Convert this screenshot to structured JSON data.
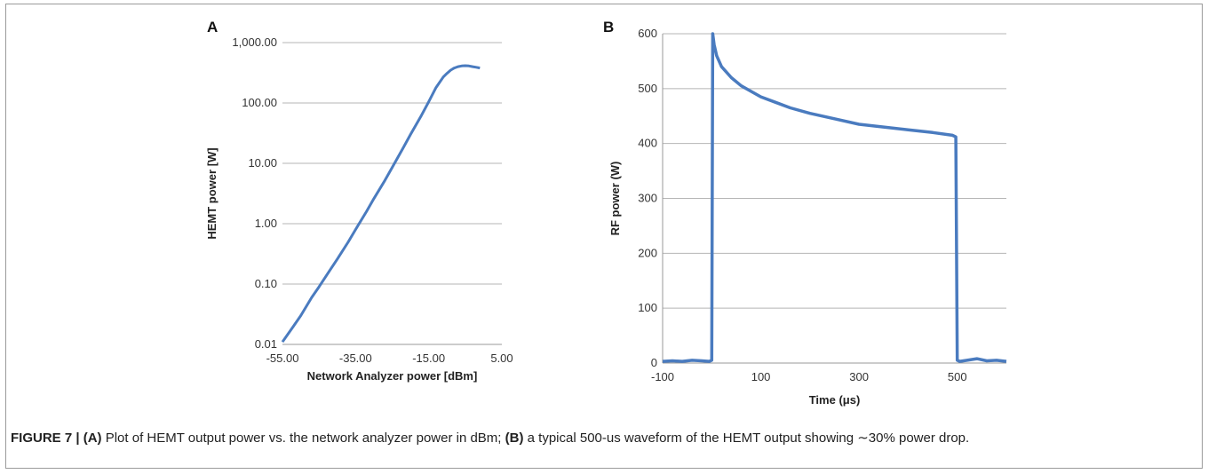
{
  "caption": {
    "label": "FIGURE 7 |",
    "parts": [
      {
        "text": " (A)",
        "bold": true
      },
      {
        "text": " Plot of HEMT output power vs. the network analyzer power in dBm; ",
        "bold": false
      },
      {
        "text": "(B)",
        "bold": true
      },
      {
        "text": " a typical 500-us waveform of the HEMT output showing ∼30% power drop.",
        "bold": false
      }
    ]
  },
  "colors": {
    "series": "#4a7bbf",
    "grid": "#b5b5b5",
    "axis": "#999999"
  },
  "chart_data": [
    {
      "panel": "A",
      "type": "line",
      "xlabel": "Network Analyzer power [dBm]",
      "ylabel": "HEMT power [W]",
      "yscale": "log",
      "xlim": [
        -55,
        5
      ],
      "ylim": [
        0.01,
        1000
      ],
      "xticks": [
        -55,
        -35,
        -15,
        5
      ],
      "xtick_labels": [
        "-55.00",
        "-35.00",
        "-15.00",
        "5.00"
      ],
      "yticks": [
        0.01,
        0.1,
        1,
        10,
        100,
        1000
      ],
      "ytick_labels": [
        "0.01",
        "0.10",
        "1.00",
        "10.00",
        "100.00",
        "1,000.00"
      ],
      "grid": "horizontal",
      "series": [
        {
          "x": [
            -55,
            -52,
            -50,
            -47,
            -45,
            -42,
            -40,
            -37,
            -35,
            -32,
            -30,
            -27,
            -25,
            -22,
            -20,
            -17,
            -15,
            -13,
            -11,
            -10,
            -9,
            -8,
            -7,
            -6,
            -5,
            -4,
            -3,
            -2,
            -1
          ],
          "y": [
            0.011,
            0.02,
            0.03,
            0.06,
            0.09,
            0.17,
            0.26,
            0.5,
            0.8,
            1.6,
            2.6,
            5.2,
            8.5,
            18,
            30,
            62,
            105,
            180,
            270,
            310,
            350,
            380,
            400,
            410,
            415,
            410,
            400,
            390,
            380
          ]
        }
      ]
    },
    {
      "panel": "B",
      "type": "line",
      "xlabel": "Time (μs)",
      "ylabel": "RF power (W)",
      "xlim": [
        -100,
        600
      ],
      "ylim": [
        0,
        600
      ],
      "xticks": [
        -100,
        100,
        300,
        500
      ],
      "yticks": [
        0,
        100,
        200,
        300,
        400,
        500,
        600
      ],
      "grid": "horizontal",
      "series": [
        {
          "x": [
            -100,
            -80,
            -60,
            -40,
            -20,
            -5,
            0,
            2,
            5,
            10,
            20,
            40,
            60,
            80,
            100,
            130,
            160,
            200,
            250,
            300,
            350,
            400,
            450,
            490,
            497,
            500,
            505,
            520,
            540,
            560,
            580,
            600
          ],
          "y": [
            3,
            4,
            3,
            5,
            4,
            3,
            5,
            600,
            580,
            560,
            540,
            520,
            505,
            495,
            485,
            475,
            465,
            455,
            445,
            435,
            430,
            425,
            420,
            415,
            412,
            5,
            3,
            5,
            8,
            4,
            5,
            3
          ]
        }
      ]
    }
  ]
}
